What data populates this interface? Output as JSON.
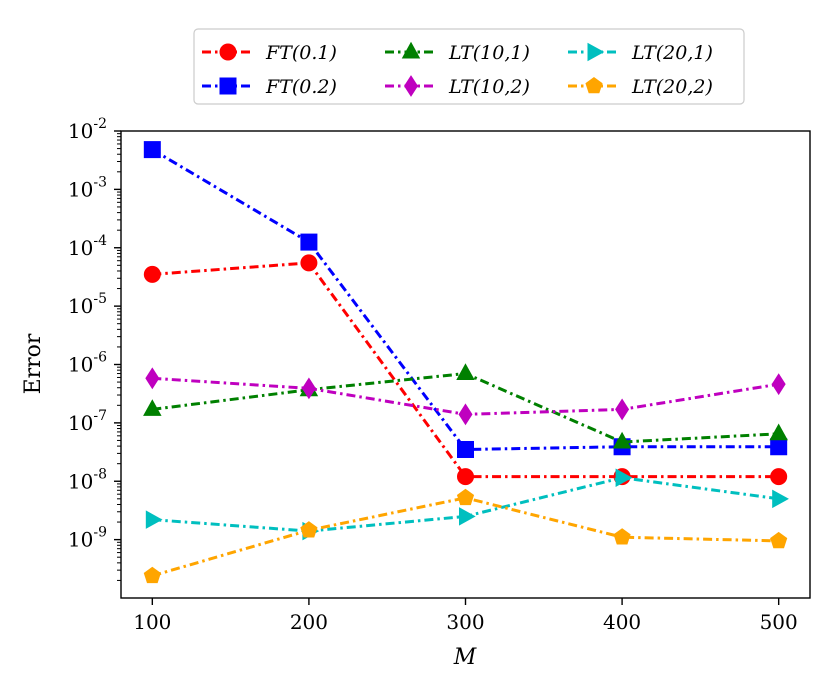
{
  "chart_data": {
    "type": "line",
    "xlabel": "M",
    "ylabel": "Error",
    "yscale": "log",
    "x": [
      100,
      200,
      300,
      400,
      500
    ],
    "xlim": [
      80,
      520
    ],
    "ylim": [
      1e-10,
      0.01
    ],
    "x_ticks": [
      100,
      200,
      300,
      400,
      500
    ],
    "y_ticks": [
      {
        "value": 1e-09,
        "base": "10",
        "exp": "-9"
      },
      {
        "value": 1e-08,
        "base": "10",
        "exp": "-8"
      },
      {
        "value": 1e-07,
        "base": "10",
        "exp": "-7"
      },
      {
        "value": 1e-06,
        "base": "10",
        "exp": "-6"
      },
      {
        "value": 1e-05,
        "base": "10",
        "exp": "-5"
      },
      {
        "value": 0.0001,
        "base": "10",
        "exp": "-4"
      },
      {
        "value": 0.001,
        "base": "10",
        "exp": "-3"
      },
      {
        "value": 0.01,
        "base": "10",
        "exp": "-2"
      }
    ],
    "grid": false,
    "legend_position": "top-center",
    "legend_columns": 3,
    "series": [
      {
        "name": "FT(0.1)",
        "color": "#ff0000",
        "marker": "circle",
        "dash": "dashdot",
        "values": [
          3.5e-05,
          5.5e-05,
          1.2e-08,
          1.2e-08,
          1.2e-08
        ]
      },
      {
        "name": "FT(0.2)",
        "color": "#0000ff",
        "marker": "square",
        "dash": "dashdot",
        "values": [
          0.0048,
          0.000125,
          3.5e-08,
          3.9e-08,
          3.9e-08
        ]
      },
      {
        "name": "LT(10,1)",
        "color": "#008000",
        "marker": "triangle-up",
        "dash": "dashdot",
        "values": [
          1.7e-07,
          3.7e-07,
          7e-07,
          4.7e-08,
          6.5e-08
        ]
      },
      {
        "name": "LT(10,2)",
        "color": "#bf00bf",
        "marker": "diamond",
        "dash": "dashdot",
        "values": [
          5.8e-07,
          3.9e-07,
          1.4e-07,
          1.7e-07,
          4.6e-07
        ]
      },
      {
        "name": "LT(20,1)",
        "color": "#00bfbf",
        "marker": "triangle-right",
        "dash": "dashdot",
        "values": [
          2.2e-09,
          1.4e-09,
          2.5e-09,
          1.15e-08,
          5e-09
        ]
      },
      {
        "name": "LT(20,2)",
        "color": "#ffa500",
        "marker": "pentagon",
        "dash": "dashdot",
        "values": [
          2.4e-10,
          1.45e-09,
          5.2e-09,
          1.1e-09,
          9.5e-10
        ]
      }
    ]
  }
}
